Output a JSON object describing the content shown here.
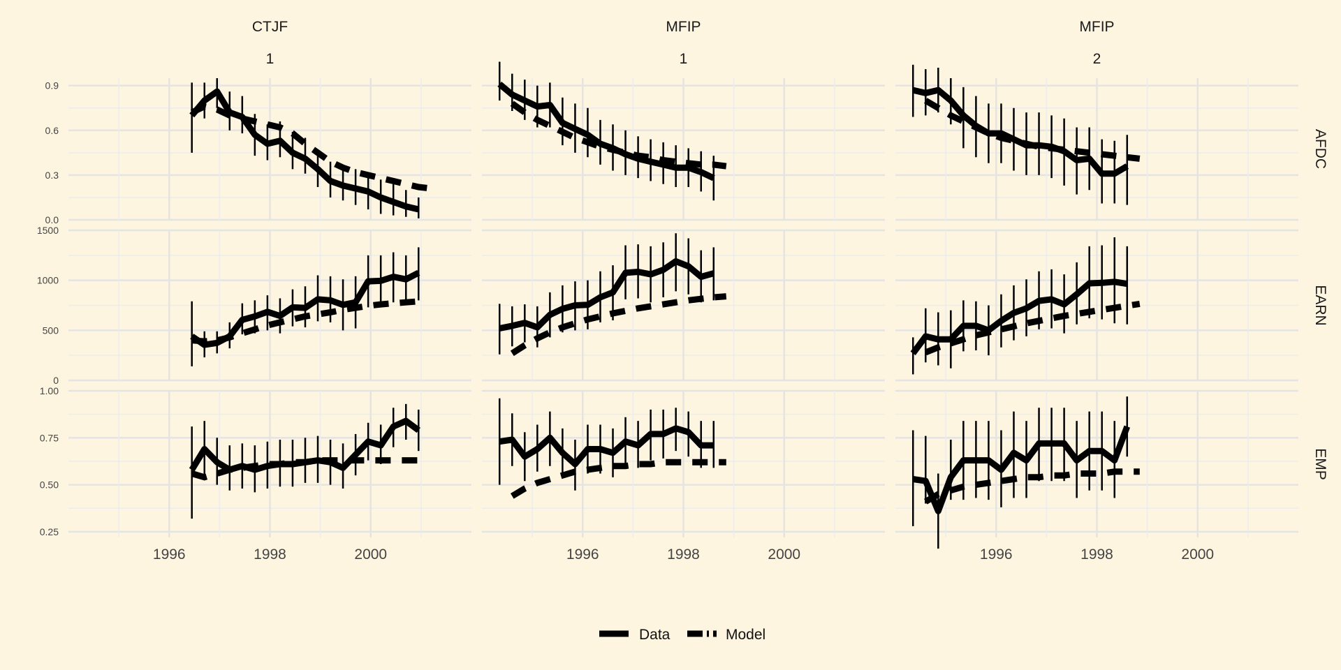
{
  "chart_data": {
    "type": "line",
    "facet_columns": [
      {
        "label_top": "CTJF",
        "label_bottom": "1"
      },
      {
        "label_top": "MFIP",
        "label_bottom": "1"
      },
      {
        "label_top": "MFIP",
        "label_bottom": "2"
      }
    ],
    "facet_rows": [
      "AFDC",
      "EARN",
      "EMP"
    ],
    "x_ticks": [
      1996,
      1998,
      2000
    ],
    "xlim": [
      1994,
      2002
    ],
    "row_scales": {
      "AFDC": {
        "ylim": [
          0.0,
          0.95
        ],
        "ticks": [
          "0.0",
          "0.3",
          "0.6",
          "0.9"
        ]
      },
      "EARN": {
        "ylim": [
          0,
          1500
        ],
        "ticks": [
          "0",
          "500",
          "1000",
          "1500"
        ]
      },
      "EMP": {
        "ylim": [
          0.22,
          1.0
        ],
        "ticks": [
          "0.25",
          "0.50",
          "0.75",
          "1.00"
        ]
      }
    },
    "legend": {
      "position": "bottom",
      "entries": [
        "Data",
        "Model"
      ]
    },
    "series_styles": {
      "Data": {
        "dash": "solid",
        "color": "#000000"
      },
      "Model": {
        "dash": "dashed",
        "color": "#000000"
      }
    },
    "panels": [
      {
        "col": 0,
        "row": "AFDC",
        "data_x": [
          1996.45,
          1996.7,
          1996.95,
          1997.2,
          1997.45,
          1997.7,
          1997.95,
          1998.2,
          1998.45,
          1998.7,
          1998.95,
          1999.2,
          1999.45,
          1999.7,
          1999.95,
          2000.2,
          2000.45,
          2000.7,
          2000.95
        ],
        "data_y": [
          0.7,
          0.8,
          0.86,
          0.72,
          0.69,
          0.57,
          0.51,
          0.53,
          0.45,
          0.41,
          0.34,
          0.26,
          0.23,
          0.21,
          0.19,
          0.15,
          0.12,
          0.09,
          0.07
        ],
        "err_lo": [
          0.45,
          0.68,
          0.75,
          0.6,
          0.58,
          0.43,
          0.4,
          0.42,
          0.34,
          0.31,
          0.22,
          0.15,
          0.13,
          0.1,
          0.07,
          0.04,
          0.03,
          0.02,
          0.01
        ],
        "err_hi": [
          0.92,
          0.92,
          0.95,
          0.86,
          0.83,
          0.71,
          0.64,
          0.66,
          0.59,
          0.55,
          0.47,
          0.39,
          0.37,
          0.34,
          0.32,
          0.27,
          0.24,
          0.2,
          0.15
        ],
        "model_x": [
          1996.45,
          1996.7,
          1996.95,
          1997.2,
          1997.45,
          1997.7,
          1997.95,
          1998.2,
          1998.45,
          1998.7,
          1998.95,
          1999.2,
          1999.45,
          1999.7,
          1999.95,
          2000.2,
          2000.45,
          2000.7,
          2000.95,
          2001.2
        ],
        "model_y": [
          0.72,
          0.76,
          0.74,
          0.7,
          0.68,
          0.66,
          0.64,
          0.62,
          0.58,
          0.51,
          0.45,
          0.39,
          0.35,
          0.32,
          0.3,
          0.28,
          0.26,
          0.24,
          0.22,
          0.21
        ]
      },
      {
        "col": 1,
        "row": "AFDC",
        "data_x": [
          1994.35,
          1994.6,
          1994.85,
          1995.1,
          1995.35,
          1995.6,
          1995.85,
          1996.1,
          1996.35,
          1996.6,
          1996.85,
          1997.1,
          1997.35,
          1997.6,
          1997.85,
          1998.1,
          1998.35,
          1998.6
        ],
        "data_y": [
          0.91,
          0.84,
          0.8,
          0.76,
          0.77,
          0.65,
          0.61,
          0.57,
          0.51,
          0.48,
          0.44,
          0.41,
          0.39,
          0.37,
          0.35,
          0.35,
          0.32,
          0.28
        ],
        "err_lo": [
          0.8,
          0.73,
          0.67,
          0.62,
          0.62,
          0.5,
          0.45,
          0.42,
          0.37,
          0.33,
          0.3,
          0.28,
          0.26,
          0.24,
          0.22,
          0.22,
          0.19,
          0.13
        ],
        "err_hi": [
          1.06,
          0.98,
          0.94,
          0.9,
          0.92,
          0.82,
          0.78,
          0.75,
          0.67,
          0.64,
          0.6,
          0.56,
          0.54,
          0.52,
          0.5,
          0.48,
          0.46,
          0.43
        ],
        "model_x": [
          1994.6,
          1994.85,
          1995.1,
          1995.35,
          1995.6,
          1995.85,
          1996.1,
          1996.35,
          1996.6,
          1996.85,
          1997.1,
          1997.35,
          1997.6,
          1997.85,
          1998.1,
          1998.35,
          1998.6,
          1998.85
        ],
        "model_y": [
          0.78,
          0.72,
          0.67,
          0.63,
          0.59,
          0.55,
          0.52,
          0.49,
          0.47,
          0.45,
          0.43,
          0.42,
          0.4,
          0.39,
          0.38,
          0.37,
          0.37,
          0.36
        ]
      },
      {
        "col": 2,
        "row": "AFDC",
        "data_x": [
          1994.35,
          1994.6,
          1994.85,
          1995.1,
          1995.35,
          1995.6,
          1995.85,
          1996.1,
          1996.35,
          1996.6,
          1996.85,
          1997.1,
          1997.35,
          1997.6,
          1997.85,
          1998.1,
          1998.35,
          1998.6
        ],
        "data_y": [
          0.87,
          0.85,
          0.87,
          0.8,
          0.7,
          0.63,
          0.58,
          0.58,
          0.54,
          0.5,
          0.5,
          0.49,
          0.46,
          0.4,
          0.41,
          0.31,
          0.31,
          0.36
        ],
        "err_lo": [
          0.69,
          0.7,
          0.72,
          0.64,
          0.48,
          0.42,
          0.38,
          0.38,
          0.33,
          0.3,
          0.3,
          0.28,
          0.23,
          0.17,
          0.2,
          0.11,
          0.11,
          0.1
        ],
        "err_hi": [
          1.04,
          1.01,
          1.02,
          0.95,
          0.89,
          0.83,
          0.78,
          0.78,
          0.75,
          0.72,
          0.72,
          0.7,
          0.68,
          0.62,
          0.62,
          0.54,
          0.53,
          0.57
        ],
        "model_x": [
          1994.6,
          1994.85,
          1995.1,
          1995.35,
          1995.6,
          1995.85,
          1996.1,
          1996.35,
          1996.6,
          1996.85,
          1997.1,
          1997.35,
          1997.6,
          1997.85,
          1998.1,
          1998.35,
          1998.6,
          1998.85
        ],
        "model_y": [
          0.8,
          0.75,
          0.7,
          0.66,
          0.62,
          0.58,
          0.55,
          0.53,
          0.51,
          0.49,
          0.48,
          0.47,
          0.46,
          0.45,
          0.44,
          0.43,
          0.42,
          0.41
        ]
      },
      {
        "col": 0,
        "row": "EARN",
        "data_x": [
          1996.45,
          1996.7,
          1996.95,
          1997.2,
          1997.45,
          1997.7,
          1997.95,
          1998.2,
          1998.45,
          1998.7,
          1998.95,
          1999.2,
          1999.45,
          1999.7,
          1999.95,
          2000.2,
          2000.45,
          2000.7,
          2000.95
        ],
        "data_y": [
          440,
          355,
          375,
          440,
          605,
          640,
          685,
          645,
          730,
          725,
          810,
          800,
          755,
          780,
          990,
          995,
          1035,
          1010,
          1075
        ],
        "err_lo": [
          140,
          230,
          270,
          320,
          460,
          470,
          500,
          470,
          540,
          530,
          590,
          580,
          500,
          520,
          730,
          730,
          780,
          760,
          800
        ],
        "err_hi": [
          790,
          490,
          490,
          580,
          770,
          800,
          850,
          820,
          910,
          940,
          1050,
          1040,
          1010,
          1040,
          1250,
          1250,
          1280,
          1250,
          1330
        ],
        "model_x": [
          1996.45,
          1996.7,
          1996.95,
          1997.2,
          1997.45,
          1997.7,
          1997.95,
          1998.2,
          1998.45,
          1998.7,
          1998.95,
          1999.2,
          1999.45,
          1999.7,
          1999.95,
          2000.2,
          2000.45,
          2000.7,
          2000.95
        ],
        "model_y": [
          400,
          390,
          400,
          430,
          470,
          510,
          550,
          580,
          610,
          640,
          660,
          680,
          705,
          725,
          745,
          760,
          770,
          780,
          790
        ]
      },
      {
        "col": 1,
        "row": "EARN",
        "data_x": [
          1994.35,
          1994.6,
          1994.85,
          1995.1,
          1995.35,
          1995.6,
          1995.85,
          1996.1,
          1996.35,
          1996.6,
          1996.85,
          1997.1,
          1997.35,
          1997.6,
          1997.85,
          1998.1,
          1998.35,
          1998.6
        ],
        "data_y": [
          520,
          545,
          575,
          530,
          655,
          715,
          750,
          755,
          830,
          880,
          1075,
          1085,
          1060,
          1105,
          1190,
          1140,
          1035,
          1070
        ],
        "err_lo": [
          260,
          340,
          380,
          330,
          430,
          480,
          500,
          510,
          580,
          600,
          810,
          820,
          780,
          830,
          890,
          860,
          780,
          800
        ],
        "err_hi": [
          765,
          740,
          760,
          740,
          880,
          950,
          990,
          1000,
          1090,
          1150,
          1350,
          1360,
          1340,
          1380,
          1470,
          1420,
          1300,
          1330
        ],
        "model_x": [
          1994.6,
          1994.85,
          1995.1,
          1995.35,
          1995.6,
          1995.85,
          1996.1,
          1996.35,
          1996.6,
          1996.85,
          1997.1,
          1997.35,
          1997.6,
          1997.85,
          1998.1,
          1998.35,
          1998.6,
          1998.85
        ],
        "model_y": [
          270,
          350,
          420,
          480,
          530,
          570,
          610,
          640,
          670,
          695,
          720,
          740,
          760,
          780,
          800,
          815,
          830,
          840
        ]
      },
      {
        "col": 2,
        "row": "EARN",
        "data_x": [
          1994.35,
          1994.6,
          1994.85,
          1995.1,
          1995.35,
          1995.6,
          1995.85,
          1996.1,
          1996.35,
          1996.6,
          1996.85,
          1997.1,
          1997.35,
          1997.6,
          1997.85,
          1998.1,
          1998.35,
          1998.6
        ],
        "data_y": [
          270,
          440,
          410,
          410,
          545,
          545,
          500,
          595,
          675,
          720,
          795,
          810,
          760,
          860,
          970,
          975,
          985,
          965
        ],
        "err_lo": [
          60,
          180,
          150,
          120,
          290,
          300,
          250,
          330,
          400,
          440,
          510,
          520,
          470,
          560,
          620,
          610,
          570,
          560
        ],
        "err_hi": [
          430,
          720,
          680,
          700,
          800,
          790,
          750,
          860,
          950,
          1010,
          1090,
          1110,
          1060,
          1180,
          1340,
          1350,
          1430,
          1340
        ],
        "model_x": [
          1994.6,
          1994.85,
          1995.1,
          1995.35,
          1995.6,
          1995.85,
          1996.1,
          1996.35,
          1996.6,
          1996.85,
          1997.1,
          1997.35,
          1997.6,
          1997.85,
          1998.1,
          1998.35,
          1998.6,
          1998.85
        ],
        "model_y": [
          280,
          330,
          370,
          410,
          450,
          480,
          510,
          540,
          570,
          595,
          620,
          645,
          665,
          685,
          705,
          725,
          745,
          765
        ]
      },
      {
        "col": 0,
        "row": "EMP",
        "data_x": [
          1996.45,
          1996.7,
          1996.95,
          1997.2,
          1997.45,
          1997.7,
          1997.95,
          1998.2,
          1998.45,
          1998.7,
          1998.95,
          1999.2,
          1999.45,
          1999.7,
          1999.95,
          2000.2,
          2000.45,
          2000.7,
          2000.95
        ],
        "data_y": [
          0.58,
          0.69,
          0.62,
          0.58,
          0.6,
          0.58,
          0.6,
          0.61,
          0.61,
          0.62,
          0.63,
          0.62,
          0.59,
          0.66,
          0.73,
          0.71,
          0.81,
          0.84,
          0.79
        ],
        "err_lo": [
          0.32,
          0.53,
          0.5,
          0.47,
          0.48,
          0.46,
          0.48,
          0.49,
          0.49,
          0.51,
          0.51,
          0.5,
          0.48,
          0.55,
          0.63,
          0.61,
          0.7,
          0.74,
          0.68
        ],
        "err_hi": [
          0.81,
          0.84,
          0.75,
          0.71,
          0.72,
          0.71,
          0.73,
          0.74,
          0.74,
          0.75,
          0.76,
          0.74,
          0.72,
          0.77,
          0.83,
          0.82,
          0.91,
          0.93,
          0.9
        ],
        "model_x": [
          1996.45,
          1996.7,
          1996.95,
          1997.2,
          1997.45,
          1997.7,
          1997.95,
          1998.2,
          1998.45,
          1998.7,
          1998.95,
          1999.2,
          1999.45,
          1999.7,
          1999.95,
          2000.2,
          2000.45,
          2000.7,
          2000.95
        ],
        "model_y": [
          0.56,
          0.54,
          0.56,
          0.58,
          0.59,
          0.6,
          0.61,
          0.61,
          0.62,
          0.62,
          0.63,
          0.63,
          0.63,
          0.63,
          0.63,
          0.63,
          0.63,
          0.63,
          0.63
        ]
      },
      {
        "col": 1,
        "row": "EMP",
        "data_x": [
          1994.35,
          1994.6,
          1994.85,
          1995.1,
          1995.35,
          1995.6,
          1995.85,
          1996.1,
          1996.35,
          1996.6,
          1996.85,
          1997.1,
          1997.35,
          1997.6,
          1997.85,
          1998.1,
          1998.35,
          1998.6
        ],
        "data_y": [
          0.73,
          0.74,
          0.65,
          0.69,
          0.75,
          0.67,
          0.61,
          0.69,
          0.69,
          0.67,
          0.73,
          0.71,
          0.77,
          0.77,
          0.8,
          0.78,
          0.71,
          0.71
        ],
        "err_lo": [
          0.5,
          0.6,
          0.52,
          0.57,
          0.6,
          0.54,
          0.47,
          0.56,
          0.56,
          0.54,
          0.6,
          0.59,
          0.63,
          0.64,
          0.68,
          0.65,
          0.59,
          0.59
        ],
        "err_hi": [
          0.96,
          0.88,
          0.78,
          0.82,
          0.89,
          0.8,
          0.74,
          0.82,
          0.82,
          0.8,
          0.86,
          0.84,
          0.9,
          0.9,
          0.91,
          0.89,
          0.84,
          0.84
        ],
        "model_x": [
          1994.6,
          1994.85,
          1995.1,
          1995.35,
          1995.6,
          1995.85,
          1996.1,
          1996.35,
          1996.6,
          1996.85,
          1997.1,
          1997.35,
          1997.6,
          1997.85,
          1998.1,
          1998.35,
          1998.6,
          1998.85
        ],
        "model_y": [
          0.44,
          0.48,
          0.51,
          0.53,
          0.55,
          0.57,
          0.58,
          0.59,
          0.6,
          0.6,
          0.61,
          0.61,
          0.62,
          0.62,
          0.62,
          0.62,
          0.62,
          0.62
        ]
      },
      {
        "col": 2,
        "row": "EMP",
        "data_x": [
          1994.35,
          1994.6,
          1994.85,
          1995.1,
          1995.35,
          1995.6,
          1995.85,
          1996.1,
          1996.35,
          1996.6,
          1996.85,
          1997.1,
          1997.35,
          1997.6,
          1997.85,
          1998.1,
          1998.35,
          1998.6
        ],
        "data_y": [
          0.53,
          0.52,
          0.36,
          0.54,
          0.63,
          0.63,
          0.63,
          0.58,
          0.67,
          0.63,
          0.72,
          0.72,
          0.72,
          0.63,
          0.68,
          0.68,
          0.63,
          0.81
        ],
        "err_lo": [
          0.28,
          0.4,
          0.16,
          0.42,
          0.42,
          0.43,
          0.42,
          0.38,
          0.43,
          0.43,
          0.52,
          0.52,
          0.52,
          0.43,
          0.47,
          0.47,
          0.43,
          0.65
        ],
        "err_hi": [
          0.79,
          0.76,
          0.56,
          0.74,
          0.84,
          0.84,
          0.84,
          0.79,
          0.89,
          0.84,
          0.91,
          0.91,
          0.91,
          0.84,
          0.89,
          0.89,
          0.84,
          0.97
        ],
        "model_x": [
          1994.6,
          1994.85,
          1995.1,
          1995.35,
          1995.6,
          1995.85,
          1996.1,
          1996.35,
          1996.6,
          1996.85,
          1997.1,
          1997.35,
          1997.6,
          1997.85,
          1998.1,
          1998.35,
          1998.6,
          1998.85
        ],
        "model_y": [
          0.41,
          0.45,
          0.47,
          0.49,
          0.5,
          0.51,
          0.52,
          0.53,
          0.54,
          0.54,
          0.55,
          0.55,
          0.56,
          0.56,
          0.56,
          0.57,
          0.57,
          0.57
        ]
      }
    ]
  }
}
